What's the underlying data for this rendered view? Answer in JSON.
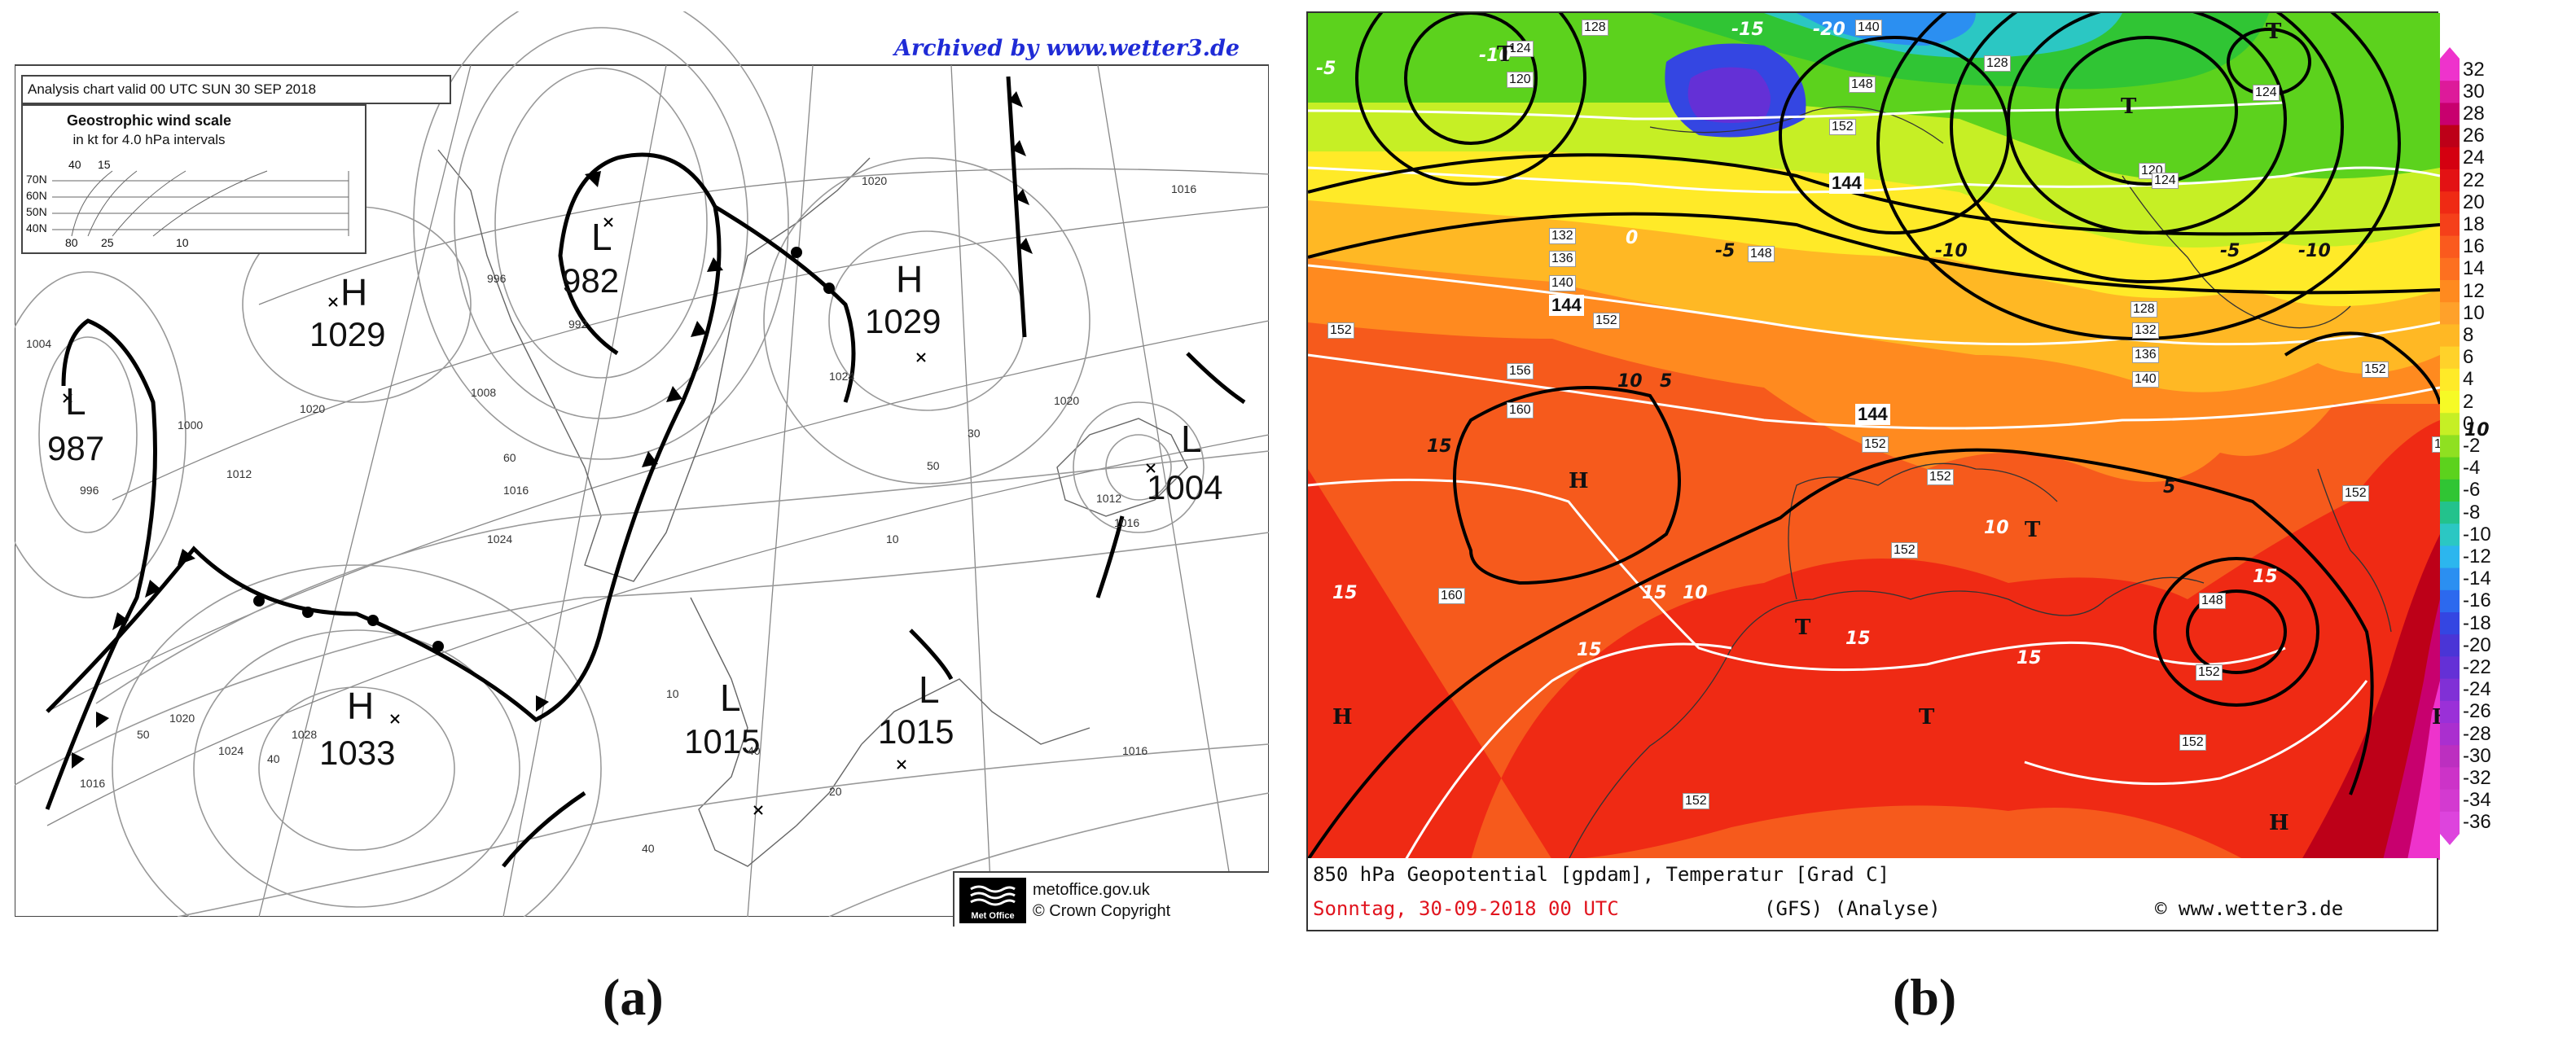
{
  "panel_a": {
    "archived": "Archived by www.wetter3.de",
    "chart_title": "Analysis chart valid 00 UTC SUN 30 SEP 2018",
    "wind_scale": {
      "title": "Geostrophic wind scale",
      "subtitle": "in kt for 4.0 hPa intervals",
      "latitudes": [
        "70N",
        "60N",
        "50N",
        "40N"
      ],
      "top_values": [
        "40",
        "15"
      ],
      "bottom_values": [
        "80",
        "25",
        "10"
      ]
    },
    "pressure_systems": [
      {
        "type": "H",
        "value": "1029"
      },
      {
        "type": "L",
        "value": "982"
      },
      {
        "type": "H",
        "value": "1029"
      },
      {
        "type": "L",
        "value": "987"
      },
      {
        "type": "L",
        "value": "1004"
      },
      {
        "type": "H",
        "value": "1033"
      },
      {
        "type": "L",
        "value": "1015"
      },
      {
        "type": "L",
        "value": "1015"
      }
    ],
    "isobar_labels": [
      "1004",
      "996",
      "1000",
      "1012",
      "1020",
      "1008",
      "1016",
      "1024",
      "992",
      "996",
      "1020",
      "1024",
      "1020",
      "1016",
      "1024",
      "1028",
      "1020",
      "1016",
      "1016",
      "1012",
      "1016"
    ],
    "wind_labels": [
      "50",
      "40",
      "50",
      "40",
      "60",
      "30",
      "10",
      "10",
      "40",
      "20"
    ],
    "metoffice": {
      "logo": "Met Office",
      "site": "metoffice.gov.uk",
      "copyright": "© Crown Copyright"
    }
  },
  "panel_b": {
    "colorbar_labels": [
      "32",
      "30",
      "28",
      "26",
      "24",
      "22",
      "20",
      "18",
      "16",
      "14",
      "12",
      "10",
      "8",
      "6",
      "4",
      "2",
      "0",
      "-2",
      "-4",
      "-6",
      "-8",
      "-10",
      "-12",
      "-14",
      "-16",
      "-18",
      "-20",
      "-22",
      "-24",
      "-26",
      "-28",
      "-30",
      "-32",
      "-34",
      "-36"
    ],
    "colorbar_colors": [
      "#ee33cc",
      "#dd1a9a",
      "#c8006e",
      "#bd0018",
      "#d40010",
      "#e31214",
      "#ef2a14",
      "#f5401a",
      "#fa5a1e",
      "#fd7020",
      "#ff8a1f",
      "#ffa12a",
      "#ffb824",
      "#ffd22a",
      "#ffea28",
      "#f6fa26",
      "#c6ef25",
      "#8fe021",
      "#5cd21d",
      "#30c534",
      "#23c28c",
      "#2bc7c3",
      "#2cb6ee",
      "#2b8ff1",
      "#2c69ee",
      "#3446e2",
      "#4a35d6",
      "#6430d6",
      "#8030d6",
      "#9a30d8",
      "#aa2fcf",
      "#bc2fc0",
      "#cc33c8",
      "#d33ad0",
      "#dd44dd"
    ],
    "geo_labels": [
      "128",
      "124",
      "120",
      "140",
      "148",
      "152",
      "144",
      "128",
      "124",
      "120",
      "124",
      "128",
      "132",
      "136",
      "140",
      "132",
      "136",
      "140",
      "144",
      "152",
      "156",
      "160",
      "152",
      "148",
      "152",
      "144",
      "148",
      "152",
      "152",
      "152",
      "160",
      "148",
      "152",
      "152",
      "152",
      "152"
    ],
    "temp_labels": [
      "-10",
      "-5",
      "0",
      "5",
      "10",
      "15",
      "-15",
      "-20"
    ],
    "highs_lows": [
      "T",
      "H"
    ],
    "footer": {
      "line1": "850 hPa Geopotential [gpdam], Temperatur [Grad C]",
      "date": "Sonntag, 30-09-2018  00 UTC",
      "model": "(GFS)  (Analyse)",
      "site": "© www.wetter3.de"
    }
  },
  "captions": {
    "a": "(a)",
    "b": "(b)"
  }
}
